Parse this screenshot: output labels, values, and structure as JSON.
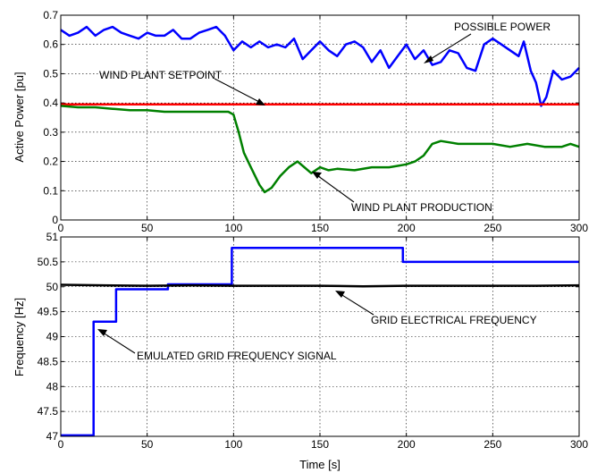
{
  "chart_data": [
    {
      "type": "line",
      "title": "",
      "xlabel": "",
      "ylabel": "Active Power [pu]",
      "xlim": [
        0,
        300
      ],
      "ylim": [
        0,
        0.7
      ],
      "xticks": [
        0,
        50,
        100,
        150,
        200,
        250,
        300
      ],
      "xtick_labels": [
        "0",
        "50",
        "100",
        "150",
        "200",
        "250",
        "300"
      ],
      "yticks": [
        0,
        0.1,
        0.2,
        0.3,
        0.4,
        0.5,
        0.6,
        0.7
      ],
      "ytick_labels": [
        "0",
        "0.1",
        "0.2",
        "0.3",
        "0.4",
        "0.5",
        "0.6",
        "0.7"
      ],
      "grid": true,
      "series": [
        {
          "name": "POSSIBLE POWER",
          "color": "#0000ff",
          "x": [
            0,
            5,
            10,
            15,
            20,
            25,
            30,
            35,
            40,
            45,
            50,
            55,
            60,
            65,
            70,
            75,
            80,
            85,
            90,
            95,
            100,
            105,
            110,
            115,
            120,
            125,
            130,
            135,
            140,
            145,
            150,
            155,
            160,
            165,
            170,
            175,
            180,
            185,
            190,
            195,
            200,
            205,
            210,
            215,
            220,
            225,
            230,
            235,
            240,
            245,
            250,
            255,
            260,
            265,
            268,
            272,
            275,
            278,
            281,
            285,
            290,
            295,
            300
          ],
          "y": [
            0.65,
            0.63,
            0.64,
            0.66,
            0.63,
            0.65,
            0.66,
            0.64,
            0.63,
            0.62,
            0.64,
            0.63,
            0.63,
            0.65,
            0.62,
            0.62,
            0.64,
            0.65,
            0.66,
            0.63,
            0.58,
            0.61,
            0.59,
            0.61,
            0.59,
            0.6,
            0.59,
            0.62,
            0.55,
            0.58,
            0.61,
            0.58,
            0.56,
            0.6,
            0.61,
            0.59,
            0.54,
            0.58,
            0.52,
            0.56,
            0.6,
            0.55,
            0.58,
            0.53,
            0.54,
            0.58,
            0.57,
            0.52,
            0.51,
            0.6,
            0.62,
            0.6,
            0.58,
            0.56,
            0.61,
            0.51,
            0.47,
            0.39,
            0.42,
            0.51,
            0.48,
            0.49,
            0.52
          ]
        },
        {
          "name": "WIND PLANT SETPOINT",
          "color": "#ff0000",
          "x": [
            0,
            300
          ],
          "y": [
            0.395,
            0.395
          ]
        },
        {
          "name": "WIND PLANT PRODUCTION",
          "color": "#008000",
          "x": [
            0,
            10,
            20,
            30,
            40,
            50,
            60,
            70,
            80,
            90,
            97,
            100,
            103,
            106,
            110,
            115,
            118,
            122,
            127,
            132,
            137,
            140,
            145,
            150,
            155,
            160,
            170,
            180,
            190,
            195,
            200,
            205,
            210,
            215,
            220,
            230,
            240,
            250,
            260,
            270,
            280,
            290,
            295,
            300
          ],
          "y": [
            0.39,
            0.385,
            0.385,
            0.38,
            0.375,
            0.375,
            0.37,
            0.37,
            0.37,
            0.37,
            0.37,
            0.36,
            0.3,
            0.23,
            0.18,
            0.12,
            0.095,
            0.11,
            0.15,
            0.18,
            0.2,
            0.185,
            0.16,
            0.18,
            0.17,
            0.175,
            0.17,
            0.18,
            0.18,
            0.185,
            0.19,
            0.2,
            0.22,
            0.26,
            0.27,
            0.26,
            0.26,
            0.26,
            0.25,
            0.26,
            0.25,
            0.25,
            0.26,
            0.25
          ]
        }
      ],
      "annotations": [
        {
          "text": "POSSIBLE POWER"
        },
        {
          "text": "WIND PLANT SETPOINT"
        },
        {
          "text": "WIND PLANT PRODUCTION"
        }
      ]
    },
    {
      "type": "line",
      "title": "",
      "xlabel": "Time [s]",
      "ylabel": "Frequency [Hz]",
      "xlim": [
        0,
        300
      ],
      "ylim": [
        47,
        51
      ],
      "xticks": [
        0,
        50,
        100,
        150,
        200,
        250,
        300
      ],
      "xtick_labels": [
        "0",
        "50",
        "100",
        "150",
        "200",
        "250",
        "300"
      ],
      "yticks": [
        47,
        47.5,
        48,
        48.5,
        49,
        49.5,
        50,
        50.5,
        51
      ],
      "ytick_labels": [
        "47",
        "47.5",
        "48",
        "48.5",
        "49",
        "49.5",
        "50",
        "50.5",
        "51"
      ],
      "grid": true,
      "series": [
        {
          "name": "EMULATED GRID FREQUENCY SIGNAL",
          "color": "#0000ff",
          "step": true,
          "x": [
            0,
            19,
            19,
            32,
            32,
            62,
            62,
            99,
            99,
            198,
            198,
            300
          ],
          "y": [
            47.02,
            47.02,
            49.3,
            49.3,
            49.95,
            49.95,
            50.05,
            50.05,
            50.78,
            50.78,
            50.5,
            50.5
          ]
        },
        {
          "name": "GRID ELECTRICAL FREQUENCY",
          "color": "#000000",
          "x": [
            0,
            25,
            50,
            75,
            100,
            125,
            150,
            175,
            200,
            225,
            250,
            275,
            300
          ],
          "y": [
            50.04,
            50.03,
            50.02,
            50.03,
            50.02,
            50.02,
            50.02,
            50.01,
            50.02,
            50.02,
            50.02,
            50.02,
            50.03
          ]
        }
      ],
      "annotations": [
        {
          "text": "GRID ELECTRICAL FREQUENCY"
        },
        {
          "text": "EMULATED GRID FREQUENCY SIGNAL"
        }
      ]
    }
  ]
}
